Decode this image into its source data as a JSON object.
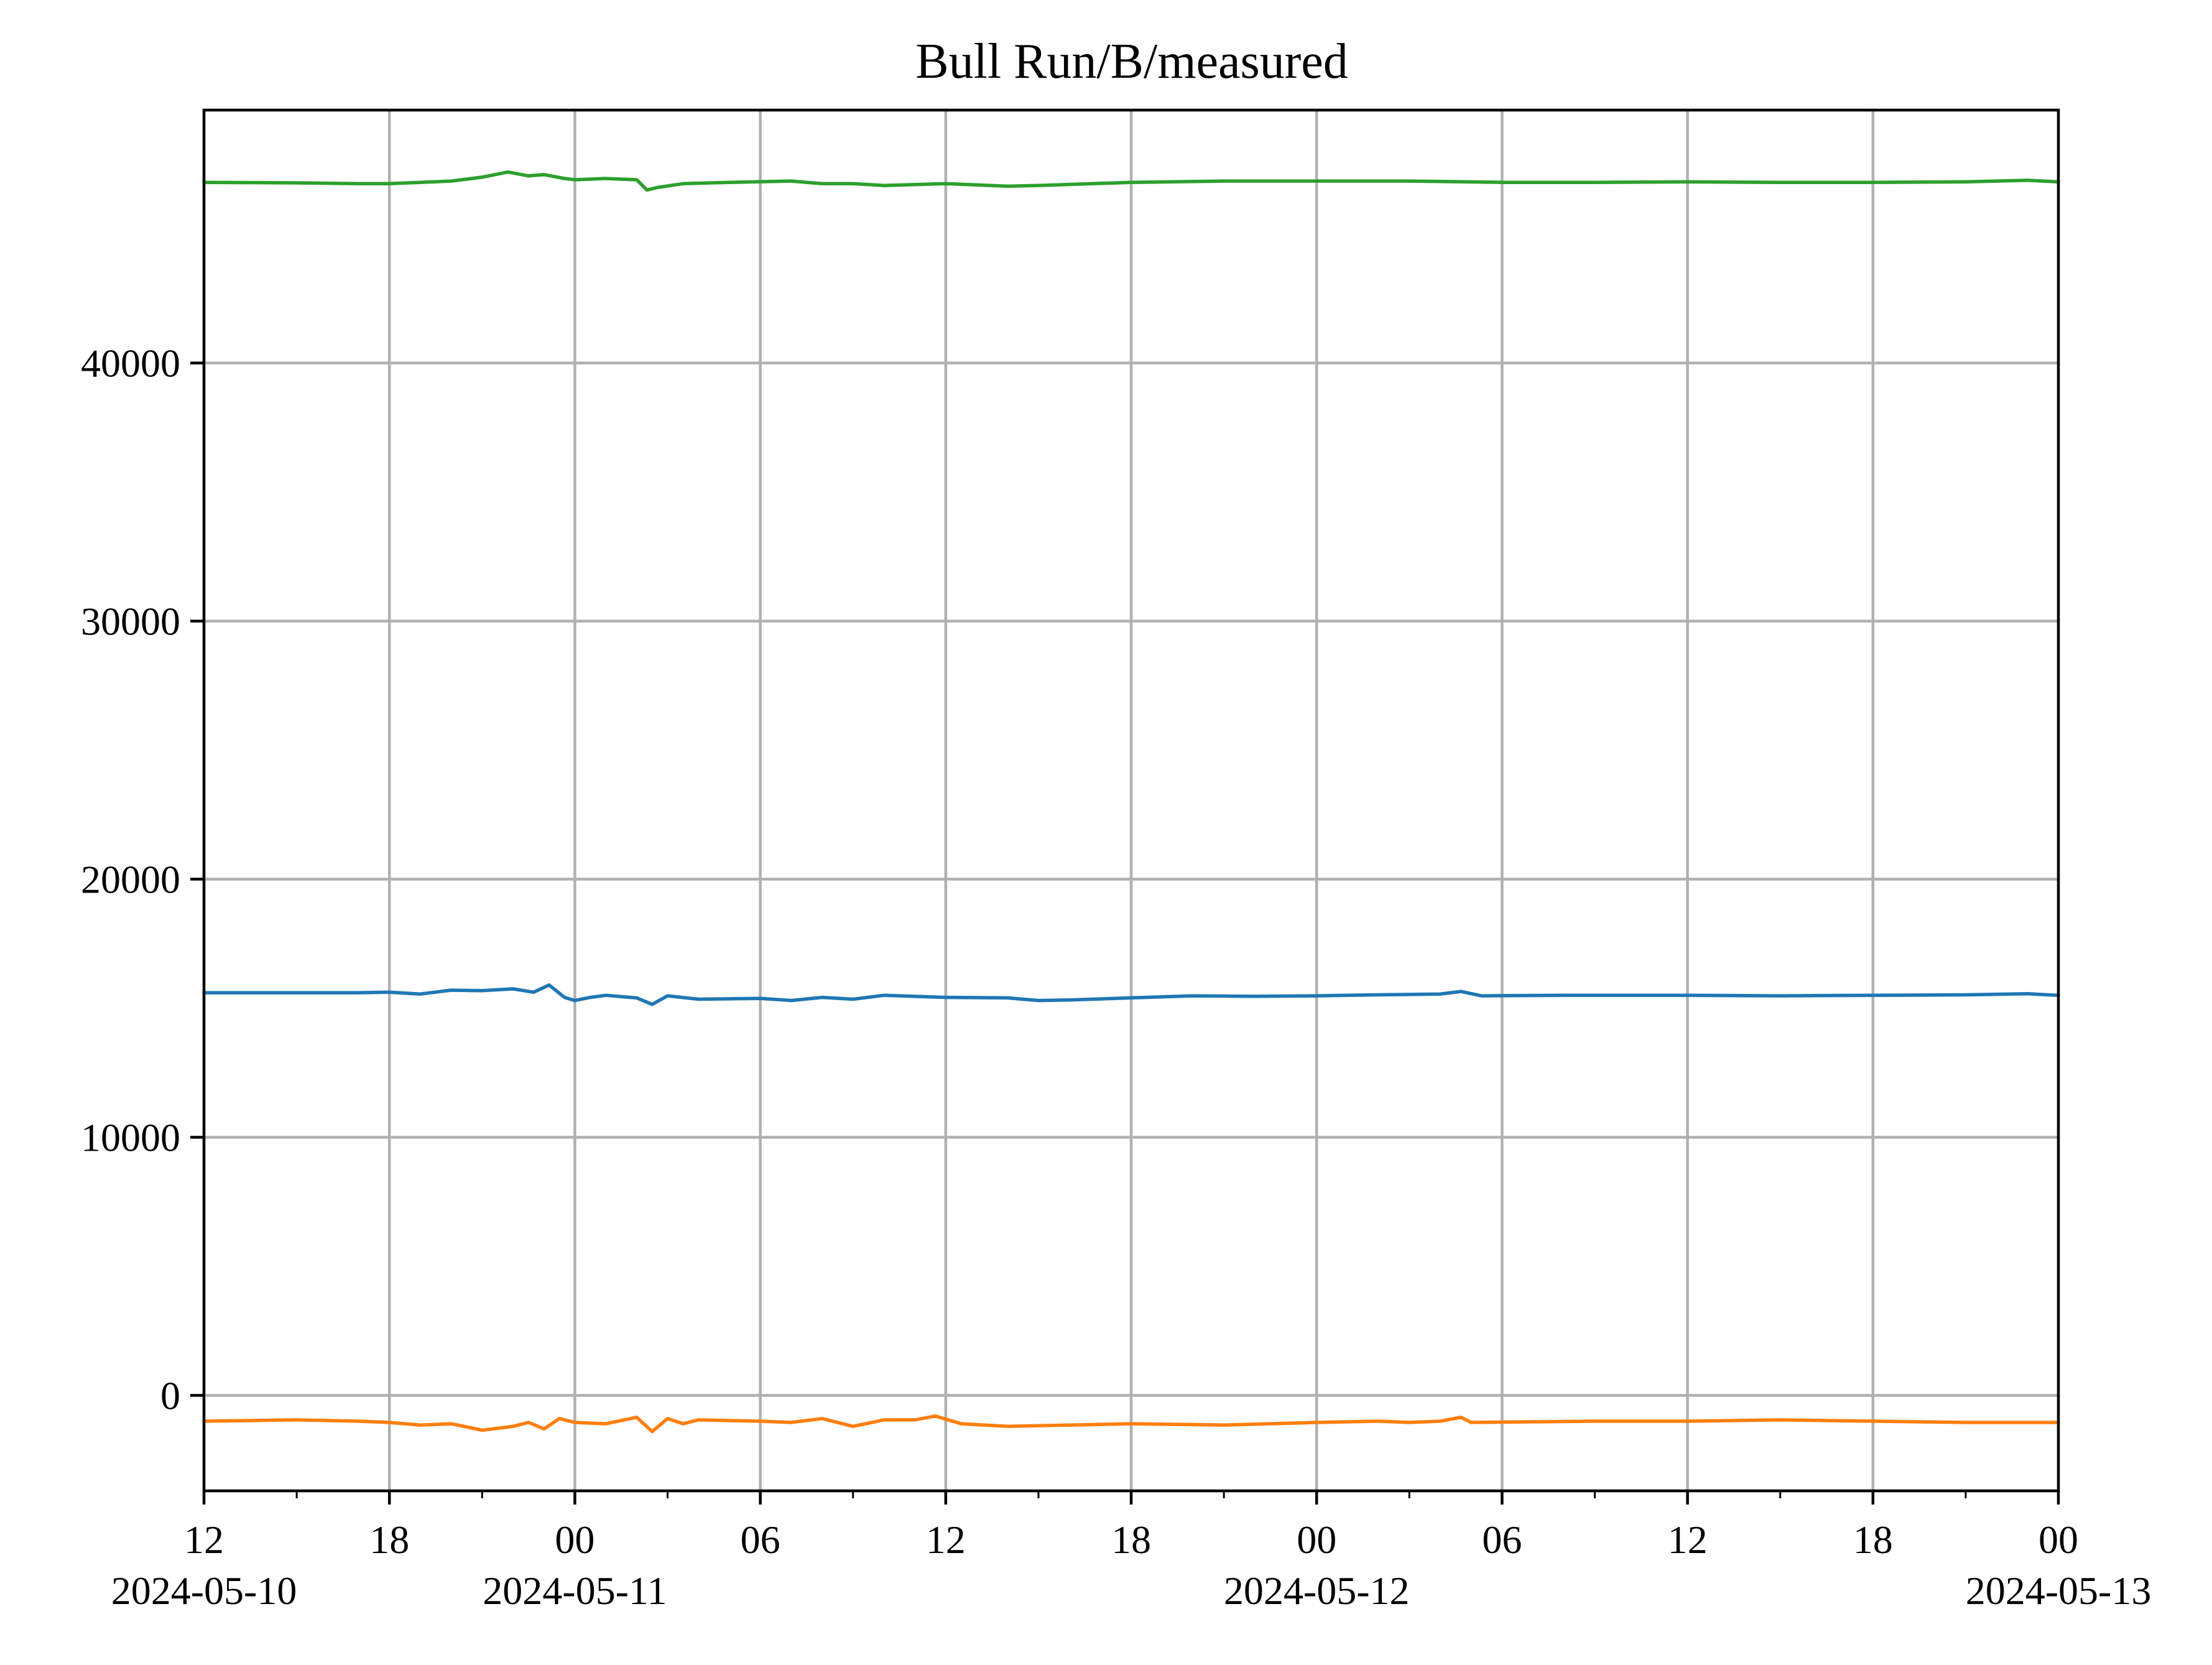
{
  "chart_data": {
    "type": "line",
    "title": "Bull Run/B/measured",
    "xlabel": "",
    "ylabel": "",
    "x_axis": {
      "type": "time",
      "start": "2024-05-10 12:00",
      "end": "2024-05-13 00:00",
      "major_ticks": [
        {
          "time": "2024-05-10 12:00",
          "label": "12",
          "date_label": "2024-05-10"
        },
        {
          "time": "2024-05-10 18:00",
          "label": "18",
          "date_label": ""
        },
        {
          "time": "2024-05-11 00:00",
          "label": "00",
          "date_label": "2024-05-11"
        },
        {
          "time": "2024-05-11 06:00",
          "label": "06",
          "date_label": ""
        },
        {
          "time": "2024-05-11 12:00",
          "label": "12",
          "date_label": ""
        },
        {
          "time": "2024-05-11 18:00",
          "label": "18",
          "date_label": ""
        },
        {
          "time": "2024-05-12 00:00",
          "label": "00",
          "date_label": "2024-05-12"
        },
        {
          "time": "2024-05-12 06:00",
          "label": "06",
          "date_label": ""
        },
        {
          "time": "2024-05-12 12:00",
          "label": "12",
          "date_label": ""
        },
        {
          "time": "2024-05-12 18:00",
          "label": "18",
          "date_label": ""
        },
        {
          "time": "2024-05-13 00:00",
          "label": "00",
          "date_label": "2024-05-13"
        }
      ],
      "minor_ticks": [
        "2024-05-10 15:00",
        "2024-05-10 21:00",
        "2024-05-11 03:00",
        "2024-05-11 09:00",
        "2024-05-11 15:00",
        "2024-05-11 21:00",
        "2024-05-12 03:00",
        "2024-05-12 09:00",
        "2024-05-12 15:00",
        "2024-05-12 21:00"
      ]
    },
    "y_axis": {
      "ylim": [
        -3700,
        49800
      ],
      "ticks": [
        {
          "value": 0,
          "label": "0"
        },
        {
          "value": 10000,
          "label": "10000"
        },
        {
          "value": 20000,
          "label": "20000"
        },
        {
          "value": 30000,
          "label": "30000"
        },
        {
          "value": 40000,
          "label": "40000"
        }
      ]
    },
    "grid": true,
    "series": [
      {
        "color": "#1f77b4",
        "points": [
          [
            "2024-05-10 12:00",
            15600
          ],
          [
            "2024-05-10 15:00",
            15600
          ],
          [
            "2024-05-10 17:00",
            15600
          ],
          [
            "2024-05-10 18:00",
            15620
          ],
          [
            "2024-05-10 19:00",
            15550
          ],
          [
            "2024-05-10 20:00",
            15700
          ],
          [
            "2024-05-10 21:00",
            15680
          ],
          [
            "2024-05-10 22:00",
            15750
          ],
          [
            "2024-05-10 22:40",
            15620
          ],
          [
            "2024-05-10 23:10",
            15900
          ],
          [
            "2024-05-10 23:40",
            15420
          ],
          [
            "2024-05-11 00:00",
            15300
          ],
          [
            "2024-05-11 00:30",
            15420
          ],
          [
            "2024-05-11 01:00",
            15500
          ],
          [
            "2024-05-11 02:00",
            15400
          ],
          [
            "2024-05-11 02:30",
            15150
          ],
          [
            "2024-05-11 03:00",
            15480
          ],
          [
            "2024-05-11 04:00",
            15350
          ],
          [
            "2024-05-11 06:00",
            15380
          ],
          [
            "2024-05-11 07:00",
            15300
          ],
          [
            "2024-05-11 08:00",
            15420
          ],
          [
            "2024-05-11 09:00",
            15350
          ],
          [
            "2024-05-11 10:00",
            15500
          ],
          [
            "2024-05-11 12:00",
            15420
          ],
          [
            "2024-05-11 14:00",
            15400
          ],
          [
            "2024-05-11 15:00",
            15300
          ],
          [
            "2024-05-11 16:00",
            15320
          ],
          [
            "2024-05-11 18:00",
            15400
          ],
          [
            "2024-05-11 20:00",
            15480
          ],
          [
            "2024-05-11 22:00",
            15460
          ],
          [
            "2024-05-12 00:00",
            15480
          ],
          [
            "2024-05-12 02:00",
            15520
          ],
          [
            "2024-05-12 04:00",
            15550
          ],
          [
            "2024-05-12 04:40",
            15650
          ],
          [
            "2024-05-12 05:20",
            15480
          ],
          [
            "2024-05-12 08:00",
            15500
          ],
          [
            "2024-05-12 12:00",
            15500
          ],
          [
            "2024-05-12 15:00",
            15480
          ],
          [
            "2024-05-12 18:00",
            15500
          ],
          [
            "2024-05-12 21:00",
            15520
          ],
          [
            "2024-05-12 23:00",
            15560
          ],
          [
            "2024-05-13 00:00",
            15500
          ]
        ]
      },
      {
        "color": "#ff7f0e",
        "points": [
          [
            "2024-05-10 12:00",
            -1000
          ],
          [
            "2024-05-10 15:00",
            -950
          ],
          [
            "2024-05-10 17:00",
            -1000
          ],
          [
            "2024-05-10 18:00",
            -1050
          ],
          [
            "2024-05-10 19:00",
            -1150
          ],
          [
            "2024-05-10 20:00",
            -1100
          ],
          [
            "2024-05-10 21:00",
            -1350
          ],
          [
            "2024-05-10 22:00",
            -1200
          ],
          [
            "2024-05-10 22:30",
            -1050
          ],
          [
            "2024-05-10 23:00",
            -1300
          ],
          [
            "2024-05-10 23:30",
            -900
          ],
          [
            "2024-05-11 00:00",
            -1050
          ],
          [
            "2024-05-11 01:00",
            -1100
          ],
          [
            "2024-05-11 02:00",
            -850
          ],
          [
            "2024-05-11 02:30",
            -1400
          ],
          [
            "2024-05-11 03:00",
            -900
          ],
          [
            "2024-05-11 03:30",
            -1100
          ],
          [
            "2024-05-11 04:00",
            -950
          ],
          [
            "2024-05-11 06:00",
            -1000
          ],
          [
            "2024-05-11 07:00",
            -1050
          ],
          [
            "2024-05-11 08:00",
            -900
          ],
          [
            "2024-05-11 09:00",
            -1200
          ],
          [
            "2024-05-11 10:00",
            -950
          ],
          [
            "2024-05-11 11:00",
            -950
          ],
          [
            "2024-05-11 11:40",
            -800
          ],
          [
            "2024-05-11 12:30",
            -1100
          ],
          [
            "2024-05-11 14:00",
            -1200
          ],
          [
            "2024-05-11 16:00",
            -1150
          ],
          [
            "2024-05-11 18:00",
            -1100
          ],
          [
            "2024-05-11 21:00",
            -1150
          ],
          [
            "2024-05-12 00:00",
            -1050
          ],
          [
            "2024-05-12 02:00",
            -1000
          ],
          [
            "2024-05-12 03:00",
            -1050
          ],
          [
            "2024-05-12 04:00",
            -1000
          ],
          [
            "2024-05-12 04:40",
            -850
          ],
          [
            "2024-05-12 05:00",
            -1050
          ],
          [
            "2024-05-12 09:00",
            -1000
          ],
          [
            "2024-05-12 12:00",
            -1000
          ],
          [
            "2024-05-12 15:00",
            -950
          ],
          [
            "2024-05-12 18:00",
            -1000
          ],
          [
            "2024-05-12 21:00",
            -1050
          ],
          [
            "2024-05-13 00:00",
            -1050
          ]
        ]
      },
      {
        "color": "#2ca02c",
        "points": [
          [
            "2024-05-10 12:00",
            47000
          ],
          [
            "2024-05-10 15:00",
            46980
          ],
          [
            "2024-05-10 17:00",
            46950
          ],
          [
            "2024-05-10 18:00",
            46950
          ],
          [
            "2024-05-10 19:00",
            47000
          ],
          [
            "2024-05-10 20:00",
            47050
          ],
          [
            "2024-05-10 21:00",
            47200
          ],
          [
            "2024-05-10 21:50",
            47400
          ],
          [
            "2024-05-10 22:30",
            47250
          ],
          [
            "2024-05-10 23:00",
            47300
          ],
          [
            "2024-05-10 23:40",
            47150
          ],
          [
            "2024-05-11 00:00",
            47100
          ],
          [
            "2024-05-11 01:00",
            47150
          ],
          [
            "2024-05-11 02:00",
            47100
          ],
          [
            "2024-05-11 02:20",
            46700
          ],
          [
            "2024-05-11 02:40",
            46800
          ],
          [
            "2024-05-11 03:30",
            46950
          ],
          [
            "2024-05-11 05:00",
            47000
          ],
          [
            "2024-05-11 07:00",
            47050
          ],
          [
            "2024-05-11 08:00",
            46950
          ],
          [
            "2024-05-11 09:00",
            46950
          ],
          [
            "2024-05-11 10:00",
            46880
          ],
          [
            "2024-05-11 12:00",
            46950
          ],
          [
            "2024-05-11 14:00",
            46850
          ],
          [
            "2024-05-11 15:00",
            46880
          ],
          [
            "2024-05-11 18:00",
            47000
          ],
          [
            "2024-05-11 21:00",
            47050
          ],
          [
            "2024-05-12 00:00",
            47050
          ],
          [
            "2024-05-12 03:00",
            47050
          ],
          [
            "2024-05-12 06:00",
            47000
          ],
          [
            "2024-05-12 09:00",
            47000
          ],
          [
            "2024-05-12 12:00",
            47020
          ],
          [
            "2024-05-12 15:00",
            47000
          ],
          [
            "2024-05-12 18:00",
            47000
          ],
          [
            "2024-05-12 21:00",
            47020
          ],
          [
            "2024-05-12 23:00",
            47080
          ],
          [
            "2024-05-13 00:00",
            47020
          ]
        ]
      }
    ]
  }
}
